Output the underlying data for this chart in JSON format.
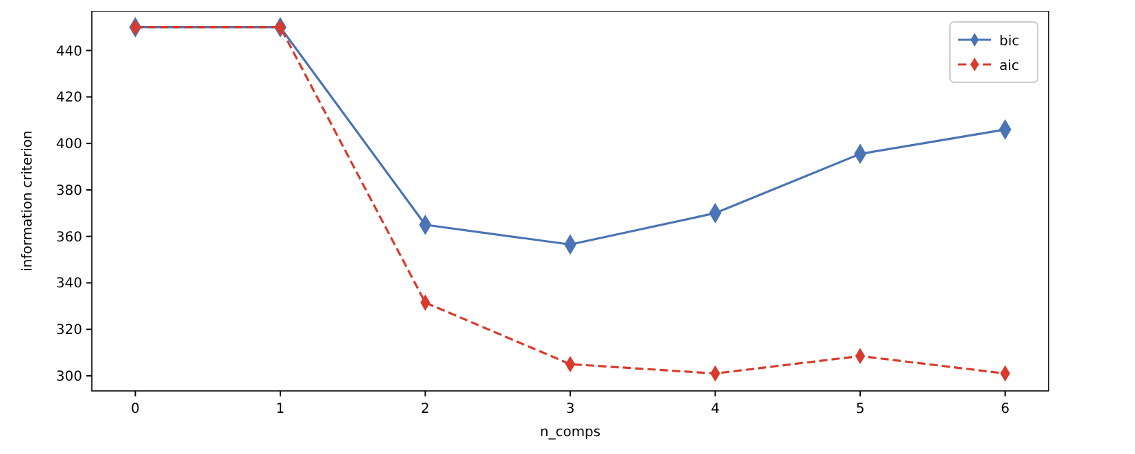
{
  "chart_data": {
    "type": "line",
    "xlabel": "n_comps",
    "ylabel": "information criterion",
    "x": [
      0,
      1,
      2,
      3,
      4,
      5,
      6
    ],
    "series": [
      {
        "name": "bic",
        "color": "#4a74b4",
        "line_style": "solid",
        "values": [
          450,
          450,
          365,
          356.5,
          370,
          395.5,
          406
        ]
      },
      {
        "name": "aic",
        "color": "#d93a2b",
        "line_style": "dashed",
        "values": [
          450,
          450,
          331.5,
          305,
          301,
          308.5,
          301
        ]
      }
    ],
    "marker": "diamond",
    "legend": "top right",
    "grid": false,
    "xlim": [
      -0.3,
      6.3
    ],
    "xticks": [
      0,
      1,
      2,
      3,
      4,
      5,
      6
    ],
    "ylim": [
      293.5,
      457
    ],
    "yticks": [
      300,
      320,
      340,
      360,
      380,
      400,
      420,
      440
    ]
  }
}
